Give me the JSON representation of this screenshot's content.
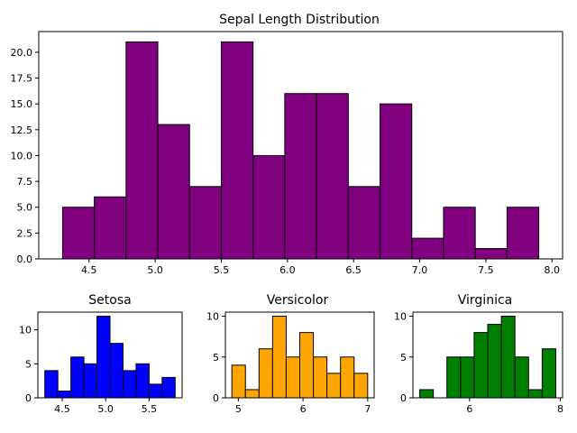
{
  "chart_data": [
    {
      "type": "bar",
      "title": "Sepal Length Distribution",
      "color": "#800080",
      "bin_edges": [
        4.3,
        4.54,
        4.78,
        5.02,
        5.26,
        5.5,
        5.74,
        5.98,
        6.22,
        6.46,
        6.7,
        6.94,
        7.18,
        7.42,
        7.66,
        7.9
      ],
      "values": [
        5,
        6,
        21,
        13,
        7,
        21,
        10,
        16,
        16,
        7,
        15,
        2,
        5,
        1,
        5
      ],
      "xlim": [
        4.12,
        8.08
      ],
      "ylim": [
        0,
        22
      ],
      "xticks": [
        "4.5",
        "5.0",
        "5.5",
        "6.0",
        "6.5",
        "7.0",
        "7.5",
        "8.0"
      ],
      "yticks": [
        "0.0",
        "2.5",
        "5.0",
        "7.5",
        "10.0",
        "12.5",
        "15.0",
        "17.5",
        "20.0"
      ]
    },
    {
      "type": "bar",
      "title": "Setosa",
      "color": "#0000ff",
      "bin_edges": [
        4.3,
        4.45,
        4.6,
        4.75,
        4.9,
        5.05,
        5.2,
        5.35,
        5.5,
        5.65,
        5.8
      ],
      "values": [
        4,
        1,
        6,
        5,
        12,
        8,
        4,
        5,
        2,
        3
      ],
      "xlim": [
        4.22,
        5.88
      ],
      "ylim": [
        0,
        12.6
      ],
      "xticks": [
        "4.5",
        "5.0",
        "5.5"
      ],
      "yticks": [
        "0",
        "5",
        "10"
      ]
    },
    {
      "type": "bar",
      "title": "Versicolor",
      "color": "#ffa500",
      "bin_edges": [
        4.9,
        5.11,
        5.32,
        5.53,
        5.74,
        5.95,
        6.16,
        6.37,
        6.58,
        6.79,
        7.0
      ],
      "values": [
        4,
        1,
        6,
        10,
        5,
        8,
        5,
        3,
        5,
        3
      ],
      "xlim": [
        4.8,
        7.1
      ],
      "ylim": [
        0,
        10.5
      ],
      "xticks": [
        "5",
        "6",
        "7"
      ],
      "yticks": [
        "0",
        "5",
        "10"
      ]
    },
    {
      "type": "bar",
      "title": "Virginica",
      "color": "#008000",
      "bin_edges": [
        4.9,
        5.2,
        5.5,
        5.8,
        6.1,
        6.4,
        6.7,
        7.0,
        7.3,
        7.6,
        7.9
      ],
      "values": [
        1,
        0,
        5,
        5,
        8,
        9,
        10,
        5,
        1,
        6
      ],
      "xlim": [
        4.75,
        8.05
      ],
      "ylim": [
        0,
        10.5
      ],
      "xticks": [
        "6",
        "8"
      ],
      "yticks": [
        "0",
        "5",
        "10"
      ]
    }
  ]
}
